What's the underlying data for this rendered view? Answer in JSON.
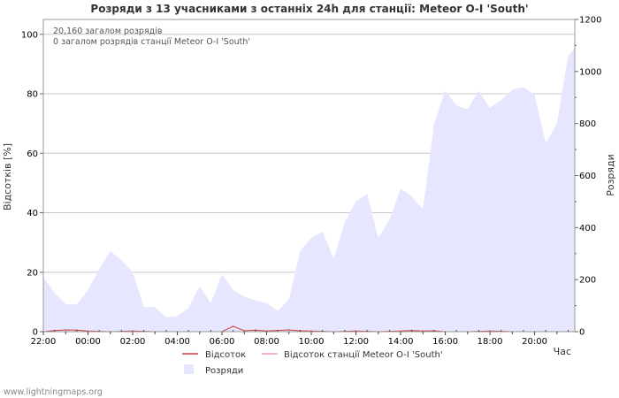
{
  "chart_data": {
    "type": "area",
    "title": "Розряди з 13 учасниками з останніх 24h для станції: Meteor O-I  'South'",
    "ylabel_left": "Відсотків   [%]",
    "ylabel_right": "Розряди",
    "xlabel": "Час",
    "ylim_left": [
      0,
      105
    ],
    "ylim_right": [
      0,
      1200
    ],
    "left_ticks": [
      0,
      20,
      40,
      60,
      80,
      100
    ],
    "right_ticks": [
      0,
      200,
      400,
      600,
      800,
      1000,
      1200
    ],
    "x_ticks": [
      "22:00",
      "00:00",
      "02:00",
      "04:00",
      "06:00",
      "08:00",
      "10:00",
      "12:00",
      "14:00",
      "16:00",
      "18:00",
      "20:00"
    ],
    "x_range_hours": [
      0,
      23.8
    ],
    "annotations": [
      "20,160 загалом розрядів",
      "0 загалом розрядів станції Meteor O-I  'South'"
    ],
    "series": [
      {
        "name": "Розряди",
        "axis": "right",
        "color": "#e6e6ff",
        "x": [
          0,
          0.5,
          1,
          1.5,
          2,
          2.5,
          3,
          3.5,
          4,
          4.5,
          5,
          5.5,
          6,
          6.5,
          7,
          7.5,
          8,
          8.5,
          9,
          9.5,
          10,
          10.5,
          11,
          11.5,
          12,
          12.5,
          13,
          13.5,
          14,
          14.5,
          15,
          15.5,
          16,
          16.5,
          17,
          17.5,
          18,
          18.5,
          19,
          19.5,
          20,
          20.5,
          21,
          21.5,
          22,
          22.5,
          23,
          23.5,
          23.8
        ],
        "values": [
          210,
          150,
          105,
          105,
          160,
          240,
          310,
          275,
          230,
          95,
          95,
          55,
          60,
          90,
          175,
          110,
          220,
          160,
          135,
          120,
          110,
          80,
          125,
          310,
          360,
          385,
          280,
          420,
          500,
          530,
          360,
          430,
          550,
          520,
          470,
          800,
          925,
          870,
          855,
          925,
          860,
          890,
          930,
          940,
          910,
          725,
          800,
          1060,
          1090
        ]
      },
      {
        "name": "Відсоток",
        "axis": "left",
        "color": "#d04040",
        "x": [
          0,
          0.5,
          1,
          1.5,
          2,
          3,
          4,
          5,
          6,
          7,
          8,
          8.5,
          9,
          9.5,
          10,
          11,
          11.5,
          12,
          13,
          14,
          15,
          16,
          16.5,
          17,
          17.5,
          18,
          19,
          20,
          21,
          22,
          23,
          23.8
        ],
        "values": [
          0,
          0.4,
          0.6,
          0.5,
          0.2,
          0,
          0.2,
          0,
          0,
          0,
          0,
          1.8,
          0.3,
          0.5,
          0.2,
          0.6,
          0.3,
          0.2,
          0,
          0.2,
          0,
          0.2,
          0.4,
          0.2,
          0.3,
          0,
          0,
          0.2,
          0,
          0,
          0,
          0
        ]
      },
      {
        "name": "Відсоток станції Meteor O-I  'South'",
        "axis": "left",
        "color": "#f0a0a0",
        "values": []
      }
    ]
  },
  "footer": {
    "site": "www.lightningmaps.org"
  }
}
